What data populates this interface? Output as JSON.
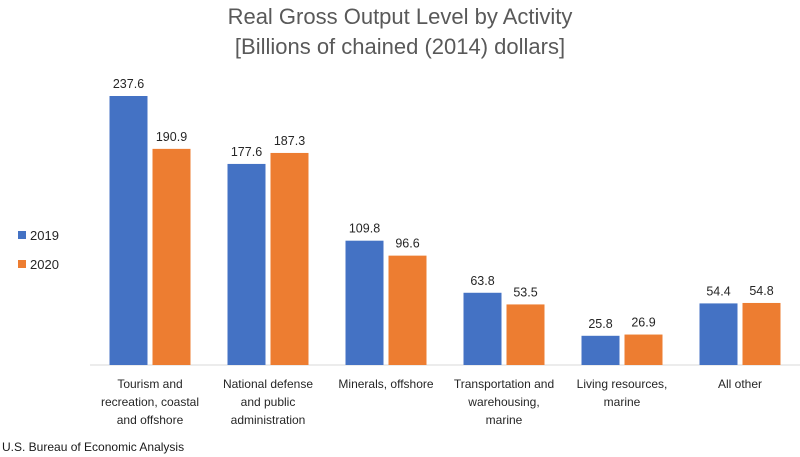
{
  "chart_data": {
    "type": "bar",
    "title_lines": [
      "Real Gross Output Level by Activity",
      "[Billions of chained (2014) dollars]"
    ],
    "categories": [
      [
        "Tourism and",
        "recreation, coastal",
        "and offshore"
      ],
      [
        "National defense",
        "and public",
        "administration"
      ],
      [
        "Minerals, offshore"
      ],
      [
        "Transportation and",
        "warehousing,",
        "marine"
      ],
      [
        "Living resources,",
        "marine"
      ],
      [
        "All other"
      ]
    ],
    "series": [
      {
        "name": "2019",
        "color": "#4472C4",
        "values": [
          237.6,
          177.6,
          109.8,
          63.8,
          25.8,
          54.4
        ]
      },
      {
        "name": "2020",
        "color": "#ED7D31",
        "values": [
          190.9,
          187.3,
          96.6,
          53.5,
          26.9,
          54.8
        ]
      }
    ],
    "ylim": [
      0,
      250
    ],
    "grid": false,
    "legend_position": "left",
    "data_labels": true
  },
  "source": "U.S. Bureau of Economic Analysis"
}
